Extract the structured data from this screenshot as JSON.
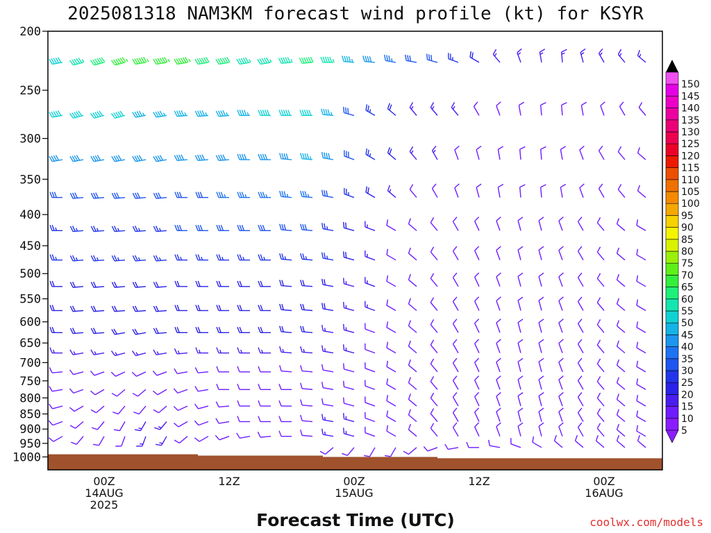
{
  "chart_data": {
    "type": "wind-barb-time-height",
    "title": "2025081318 NAM3KM forecast wind profile (kt) for KSYR",
    "xlabel": "Forecast Time (UTC)",
    "ylabel": "",
    "source_label": "coolwx.com/models",
    "y_axis": {
      "unit": "hPa",
      "ticks": [
        200,
        250,
        300,
        350,
        400,
        450,
        500,
        550,
        600,
        650,
        700,
        750,
        800,
        850,
        900,
        950,
        1000
      ],
      "range": [
        200,
        1050
      ],
      "scale": "log"
    },
    "x_axis": {
      "unit": "hours since 2025-08-13 18Z",
      "range": [
        0,
        54
      ],
      "ticks": [
        {
          "hour": 6,
          "lines": [
            "00Z",
            "14AUG",
            "2025"
          ]
        },
        {
          "hour": 18,
          "lines": [
            "12Z"
          ]
        },
        {
          "hour": 30,
          "lines": [
            "00Z",
            "15AUG"
          ]
        },
        {
          "hour": 42,
          "lines": [
            "12Z"
          ]
        },
        {
          "hour": 54,
          "lines": [
            "00Z",
            "16AUG"
          ]
        }
      ]
    },
    "colorbar": {
      "unit": "kt",
      "levels": [
        5,
        10,
        15,
        20,
        25,
        30,
        35,
        40,
        45,
        50,
        55,
        60,
        65,
        70,
        75,
        80,
        85,
        90,
        95,
        100,
        105,
        110,
        115,
        120,
        125,
        130,
        135,
        140,
        145,
        150
      ],
      "colors": [
        "#8a1dff",
        "#6f1cff",
        "#4b1cf0",
        "#2a22e6",
        "#2235ea",
        "#1f55f0",
        "#1e73f2",
        "#1c96ee",
        "#15b3e6",
        "#10d2d2",
        "#14e6b0",
        "#1ef07a",
        "#33f03c",
        "#5ff01a",
        "#9af00a",
        "#d8f200",
        "#f5f500",
        "#f5d200",
        "#f5a800",
        "#f58a00",
        "#f07000",
        "#ec4f00",
        "#ec1a00",
        "#ec0028",
        "#ec0050",
        "#ec0078",
        "#ec00a0",
        "#ec00c8",
        "#e600e6",
        "#f050f0"
      ]
    },
    "barb_times_hours": [
      0,
      2,
      4,
      6,
      8,
      10,
      12,
      14,
      16,
      18,
      20,
      22,
      24,
      26,
      28,
      30,
      32,
      34,
      36,
      38,
      40,
      42,
      44,
      46,
      48,
      50,
      52,
      54,
      56,
      58
    ],
    "levels": [
      {
        "p": 225,
        "dir": [
          260,
          260,
          255,
          255,
          255,
          260,
          260,
          260,
          260,
          260,
          260,
          260,
          265,
          265,
          270,
          275,
          275,
          280,
          280,
          285,
          290,
          300,
          320,
          340,
          350,
          355,
          345,
          330,
          320,
          310
        ],
        "spd": [
          45,
          50,
          55,
          60,
          65,
          65,
          65,
          65,
          60,
          60,
          55,
          55,
          55,
          60,
          55,
          45,
          40,
          35,
          30,
          30,
          25,
          20,
          15,
          15,
          15,
          15,
          15,
          15,
          15,
          15
        ]
      },
      {
        "p": 275,
        "dir": [
          260,
          260,
          255,
          255,
          255,
          260,
          260,
          265,
          265,
          265,
          270,
          270,
          270,
          270,
          275,
          285,
          300,
          310,
          320,
          320,
          320,
          330,
          340,
          350,
          355,
          355,
          350,
          340,
          330,
          320
        ],
        "spd": [
          45,
          50,
          50,
          50,
          50,
          45,
          45,
          45,
          45,
          45,
          45,
          50,
          50,
          50,
          45,
          30,
          25,
          20,
          15,
          15,
          15,
          10,
          10,
          10,
          10,
          10,
          10,
          10,
          10,
          10
        ]
      },
      {
        "p": 325,
        "dir": [
          260,
          260,
          260,
          260,
          260,
          260,
          260,
          265,
          265,
          265,
          270,
          270,
          275,
          275,
          280,
          290,
          300,
          310,
          320,
          330,
          340,
          345,
          350,
          355,
          355,
          350,
          340,
          330,
          320,
          310
        ],
        "spd": [
          35,
          40,
          40,
          40,
          40,
          40,
          40,
          40,
          40,
          40,
          40,
          40,
          40,
          45,
          40,
          30,
          25,
          20,
          15,
          15,
          10,
          10,
          10,
          10,
          10,
          10,
          10,
          10,
          10,
          10
        ]
      },
      {
        "p": 375,
        "dir": [
          270,
          270,
          265,
          265,
          265,
          265,
          265,
          270,
          270,
          270,
          270,
          270,
          275,
          275,
          280,
          290,
          300,
          310,
          320,
          330,
          340,
          345,
          350,
          355,
          355,
          350,
          340,
          330,
          320,
          310
        ],
        "spd": [
          30,
          30,
          30,
          30,
          30,
          30,
          30,
          30,
          30,
          35,
          35,
          35,
          35,
          35,
          30,
          25,
          20,
          15,
          10,
          10,
          10,
          10,
          10,
          10,
          10,
          10,
          10,
          10,
          10,
          10
        ]
      },
      {
        "p": 425,
        "dir": [
          270,
          270,
          265,
          265,
          265,
          265,
          265,
          270,
          270,
          270,
          270,
          270,
          275,
          275,
          280,
          285,
          290,
          300,
          310,
          320,
          330,
          335,
          340,
          345,
          345,
          340,
          330,
          320,
          310,
          300
        ],
        "spd": [
          25,
          25,
          25,
          25,
          25,
          25,
          25,
          30,
          30,
          30,
          30,
          30,
          30,
          30,
          25,
          20,
          15,
          10,
          10,
          10,
          10,
          10,
          10,
          10,
          10,
          10,
          10,
          10,
          10,
          10
        ]
      },
      {
        "p": 475,
        "dir": [
          270,
          270,
          265,
          265,
          265,
          265,
          265,
          270,
          270,
          270,
          270,
          270,
          275,
          275,
          280,
          285,
          290,
          300,
          310,
          320,
          330,
          335,
          340,
          345,
          345,
          340,
          330,
          320,
          310,
          300
        ],
        "spd": [
          25,
          25,
          25,
          25,
          25,
          25,
          25,
          25,
          25,
          25,
          25,
          25,
          25,
          25,
          25,
          20,
          15,
          10,
          10,
          10,
          10,
          10,
          10,
          10,
          10,
          10,
          10,
          10,
          10,
          10
        ]
      },
      {
        "p": 525,
        "dir": [
          270,
          270,
          265,
          265,
          265,
          265,
          265,
          270,
          270,
          270,
          270,
          270,
          275,
          275,
          280,
          285,
          290,
          300,
          310,
          320,
          330,
          335,
          340,
          345,
          345,
          340,
          330,
          320,
          310,
          300
        ],
        "spd": [
          20,
          20,
          20,
          20,
          20,
          20,
          20,
          20,
          20,
          20,
          20,
          20,
          20,
          20,
          20,
          15,
          15,
          10,
          10,
          10,
          10,
          10,
          10,
          10,
          10,
          10,
          10,
          10,
          10,
          10
        ]
      },
      {
        "p": 575,
        "dir": [
          270,
          270,
          265,
          265,
          265,
          265,
          265,
          270,
          270,
          270,
          270,
          270,
          275,
          275,
          280,
          285,
          290,
          300,
          310,
          320,
          330,
          335,
          340,
          345,
          345,
          340,
          330,
          320,
          310,
          300
        ],
        "spd": [
          20,
          20,
          20,
          20,
          20,
          20,
          20,
          20,
          20,
          20,
          20,
          20,
          20,
          20,
          20,
          15,
          15,
          10,
          10,
          10,
          10,
          10,
          10,
          10,
          10,
          10,
          10,
          10,
          10,
          10
        ]
      },
      {
        "p": 625,
        "dir": [
          270,
          270,
          265,
          265,
          260,
          260,
          265,
          270,
          270,
          270,
          270,
          270,
          275,
          275,
          280,
          285,
          290,
          300,
          310,
          320,
          330,
          335,
          340,
          345,
          345,
          340,
          330,
          320,
          310,
          300
        ],
        "spd": [
          20,
          20,
          20,
          20,
          20,
          20,
          20,
          20,
          20,
          20,
          20,
          20,
          20,
          20,
          15,
          15,
          10,
          10,
          10,
          10,
          10,
          10,
          10,
          10,
          10,
          10,
          10,
          10,
          10,
          10
        ]
      },
      {
        "p": 675,
        "dir": [
          270,
          270,
          260,
          260,
          255,
          255,
          260,
          265,
          270,
          270,
          270,
          270,
          275,
          275,
          280,
          285,
          290,
          300,
          310,
          320,
          330,
          335,
          340,
          345,
          345,
          340,
          330,
          320,
          310,
          300
        ],
        "spd": [
          15,
          15,
          15,
          15,
          15,
          15,
          15,
          15,
          15,
          15,
          15,
          15,
          15,
          15,
          15,
          15,
          10,
          10,
          10,
          10,
          10,
          10,
          10,
          10,
          10,
          10,
          10,
          10,
          10,
          10
        ]
      },
      {
        "p": 725,
        "dir": [
          270,
          265,
          255,
          250,
          245,
          245,
          250,
          260,
          265,
          270,
          270,
          270,
          275,
          275,
          280,
          285,
          290,
          300,
          310,
          320,
          330,
          335,
          340,
          345,
          345,
          340,
          330,
          320,
          310,
          300
        ],
        "spd": [
          10,
          10,
          10,
          10,
          10,
          10,
          10,
          10,
          10,
          10,
          10,
          10,
          10,
          10,
          10,
          10,
          10,
          10,
          10,
          10,
          10,
          10,
          10,
          10,
          10,
          10,
          10,
          10,
          10,
          10
        ]
      },
      {
        "p": 775,
        "dir": [
          270,
          260,
          250,
          240,
          230,
          230,
          240,
          250,
          260,
          270,
          270,
          270,
          270,
          275,
          280,
          285,
          290,
          300,
          310,
          320,
          330,
          335,
          340,
          345,
          345,
          340,
          330,
          320,
          310,
          300
        ],
        "spd": [
          10,
          10,
          10,
          10,
          10,
          10,
          10,
          10,
          10,
          10,
          10,
          10,
          10,
          10,
          10,
          10,
          10,
          10,
          10,
          10,
          10,
          10,
          10,
          10,
          10,
          10,
          10,
          10,
          10,
          10
        ]
      },
      {
        "p": 825,
        "dir": [
          270,
          255,
          240,
          230,
          220,
          220,
          230,
          245,
          255,
          265,
          270,
          270,
          270,
          275,
          280,
          285,
          290,
          300,
          310,
          320,
          330,
          335,
          340,
          345,
          345,
          340,
          330,
          320,
          310,
          300
        ],
        "spd": [
          10,
          10,
          10,
          10,
          10,
          10,
          10,
          10,
          10,
          10,
          10,
          10,
          10,
          10,
          10,
          10,
          10,
          10,
          10,
          10,
          10,
          10,
          10,
          10,
          10,
          10,
          10,
          10,
          10,
          10
        ]
      },
      {
        "p": 875,
        "dir": [
          260,
          250,
          230,
          220,
          210,
          210,
          220,
          240,
          250,
          260,
          270,
          270,
          270,
          275,
          280,
          285,
          290,
          300,
          310,
          320,
          330,
          335,
          340,
          345,
          345,
          340,
          330,
          320,
          310,
          300
        ],
        "spd": [
          10,
          10,
          10,
          10,
          10,
          15,
          15,
          10,
          10,
          10,
          10,
          10,
          10,
          10,
          15,
          15,
          10,
          10,
          10,
          10,
          10,
          10,
          10,
          10,
          10,
          10,
          10,
          10,
          10,
          10
        ]
      },
      {
        "p": 925,
        "dir": [
          250,
          240,
          220,
          210,
          200,
          200,
          210,
          230,
          240,
          250,
          260,
          265,
          270,
          275,
          280,
          285,
          290,
          300,
          310,
          320,
          330,
          335,
          340,
          345,
          345,
          340,
          330,
          320,
          310,
          300
        ],
        "spd": [
          5,
          10,
          10,
          10,
          10,
          15,
          15,
          10,
          10,
          10,
          10,
          10,
          10,
          10,
          15,
          15,
          10,
          10,
          10,
          10,
          10,
          10,
          10,
          10,
          10,
          10,
          10,
          10,
          10,
          10
        ]
      },
      {
        "p": 965,
        "dir": [
          0,
          0,
          0,
          0,
          0,
          0,
          0,
          0,
          0,
          0,
          0,
          0,
          0,
          0,
          230,
          220,
          210,
          210,
          230,
          250,
          260,
          270,
          280,
          290,
          300,
          310,
          310,
          310,
          310,
          310
        ],
        "spd": [
          0,
          0,
          0,
          0,
          0,
          0,
          0,
          0,
          0,
          0,
          0,
          0,
          0,
          0,
          10,
          10,
          10,
          10,
          10,
          10,
          10,
          10,
          10,
          10,
          10,
          10,
          10,
          10,
          10,
          10
        ]
      }
    ],
    "terrain_steps": [
      {
        "from_hour": 0,
        "to_hour": 15,
        "p": 990
      },
      {
        "from_hour": 15,
        "to_hour": 27,
        "p": 995
      },
      {
        "from_hour": 27,
        "to_hour": 38,
        "p": 1000
      },
      {
        "from_hour": 38,
        "to_hour": 60,
        "p": 1005
      }
    ],
    "terrain_color": "#a0522d"
  }
}
